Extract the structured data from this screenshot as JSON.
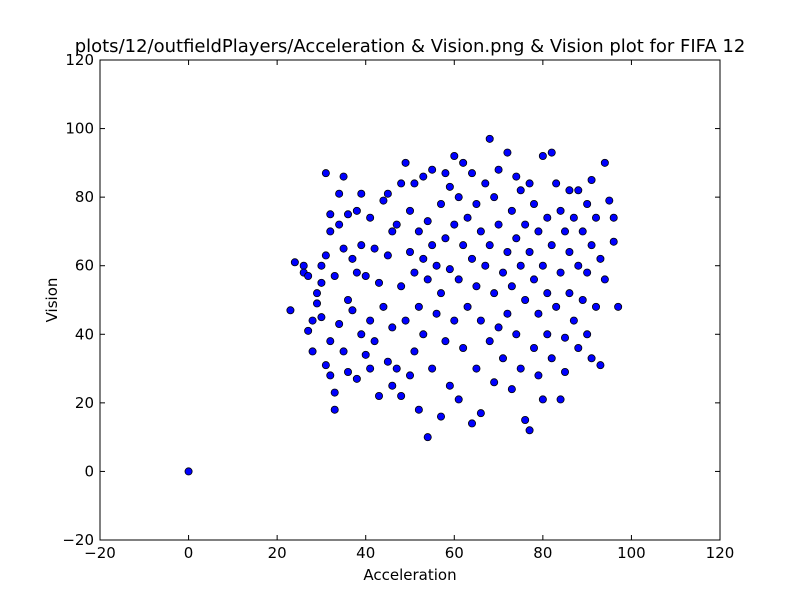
{
  "chart_data": {
    "type": "scatter",
    "title": "plots/12/outfieldPlayers/Acceleration & Vision.png & Vision plot for FIFA 12",
    "xlabel": "Acceleration",
    "ylabel": "Vision",
    "xlim": [
      -20,
      120
    ],
    "ylim": [
      -20,
      120
    ],
    "xticks": [
      "−20",
      "0",
      "20",
      "40",
      "60",
      "80",
      "100",
      "120"
    ],
    "yticks": [
      "−20",
      "0",
      "20",
      "40",
      "60",
      "80",
      "100",
      "120"
    ],
    "grid": false,
    "legend": "none",
    "marker_color": "#0000ff",
    "marker_edge_color": "#000000",
    "points": [
      [
        0,
        0
      ],
      [
        23,
        47
      ],
      [
        24,
        61
      ],
      [
        26,
        60
      ],
      [
        26,
        58
      ],
      [
        27,
        57
      ],
      [
        27,
        41
      ],
      [
        28,
        35
      ],
      [
        28,
        44
      ],
      [
        29,
        49
      ],
      [
        29,
        52
      ],
      [
        30,
        60
      ],
      [
        30,
        55
      ],
      [
        30,
        45
      ],
      [
        31,
        87
      ],
      [
        31,
        63
      ],
      [
        31,
        31
      ],
      [
        32,
        75
      ],
      [
        32,
        70
      ],
      [
        32,
        38
      ],
      [
        32,
        28
      ],
      [
        33,
        18
      ],
      [
        33,
        23
      ],
      [
        33,
        57
      ],
      [
        34,
        72
      ],
      [
        34,
        81
      ],
      [
        34,
        43
      ],
      [
        35,
        86
      ],
      [
        35,
        65
      ],
      [
        35,
        35
      ],
      [
        36,
        75
      ],
      [
        36,
        50
      ],
      [
        36,
        29
      ],
      [
        37,
        62
      ],
      [
        37,
        47
      ],
      [
        38,
        76
      ],
      [
        38,
        58
      ],
      [
        38,
        27
      ],
      [
        39,
        81
      ],
      [
        39,
        66
      ],
      [
        39,
        40
      ],
      [
        40,
        57
      ],
      [
        40,
        34
      ],
      [
        41,
        74
      ],
      [
        41,
        44
      ],
      [
        41,
        30
      ],
      [
        42,
        65
      ],
      [
        42,
        38
      ],
      [
        43,
        55
      ],
      [
        43,
        22
      ],
      [
        44,
        79
      ],
      [
        44,
        48
      ],
      [
        45,
        81
      ],
      [
        45,
        63
      ],
      [
        45,
        32
      ],
      [
        46,
        70
      ],
      [
        46,
        42
      ],
      [
        46,
        25
      ],
      [
        47,
        72
      ],
      [
        47,
        30
      ],
      [
        48,
        84
      ],
      [
        48,
        54
      ],
      [
        48,
        22
      ],
      [
        49,
        90
      ],
      [
        49,
        44
      ],
      [
        50,
        64
      ],
      [
        50,
        28
      ],
      [
        50,
        76
      ],
      [
        51,
        58
      ],
      [
        51,
        35
      ],
      [
        51,
        84
      ],
      [
        52,
        48
      ],
      [
        52,
        70
      ],
      [
        52,
        18
      ],
      [
        53,
        62
      ],
      [
        53,
        40
      ],
      [
        53,
        86
      ],
      [
        54,
        10
      ],
      [
        54,
        56
      ],
      [
        54,
        73
      ],
      [
        55,
        30
      ],
      [
        55,
        66
      ],
      [
        55,
        88
      ],
      [
        56,
        46
      ],
      [
        56,
        60
      ],
      [
        57,
        16
      ],
      [
        57,
        78
      ],
      [
        57,
        52
      ],
      [
        58,
        87
      ],
      [
        58,
        38
      ],
      [
        58,
        68
      ],
      [
        59,
        25
      ],
      [
        59,
        59
      ],
      [
        59,
        83
      ],
      [
        60,
        44
      ],
      [
        60,
        72
      ],
      [
        60,
        92
      ],
      [
        61,
        21
      ],
      [
        61,
        56
      ],
      [
        61,
        80
      ],
      [
        62,
        36
      ],
      [
        62,
        66
      ],
      [
        62,
        90
      ],
      [
        63,
        48
      ],
      [
        63,
        74
      ],
      [
        64,
        14
      ],
      [
        64,
        62
      ],
      [
        64,
        87
      ],
      [
        65,
        30
      ],
      [
        65,
        54
      ],
      [
        65,
        78
      ],
      [
        66,
        17
      ],
      [
        66,
        44
      ],
      [
        66,
        70
      ],
      [
        67,
        60
      ],
      [
        67,
        84
      ],
      [
        68,
        97
      ],
      [
        68,
        38
      ],
      [
        68,
        66
      ],
      [
        69,
        26
      ],
      [
        69,
        52
      ],
      [
        69,
        80
      ],
      [
        70,
        88
      ],
      [
        70,
        42
      ],
      [
        70,
        72
      ],
      [
        71,
        58
      ],
      [
        71,
        33
      ],
      [
        72,
        93
      ],
      [
        72,
        64
      ],
      [
        72,
        46
      ],
      [
        73,
        24
      ],
      [
        73,
        76
      ],
      [
        73,
        54
      ],
      [
        74,
        86
      ],
      [
        74,
        40
      ],
      [
        74,
        68
      ],
      [
        75,
        30
      ],
      [
        75,
        60
      ],
      [
        75,
        82
      ],
      [
        76,
        15
      ],
      [
        76,
        50
      ],
      [
        76,
        72
      ],
      [
        77,
        12
      ],
      [
        77,
        64
      ],
      [
        77,
        84
      ],
      [
        78,
        36
      ],
      [
        78,
        56
      ],
      [
        78,
        78
      ],
      [
        79,
        46
      ],
      [
        79,
        70
      ],
      [
        79,
        28
      ],
      [
        80,
        92
      ],
      [
        80,
        60
      ],
      [
        80,
        21
      ],
      [
        81,
        40
      ],
      [
        81,
        74
      ],
      [
        81,
        52
      ],
      [
        82,
        93
      ],
      [
        82,
        66
      ],
      [
        82,
        33
      ],
      [
        83,
        84
      ],
      [
        83,
        48
      ],
      [
        84,
        21
      ],
      [
        84,
        58
      ],
      [
        84,
        76
      ],
      [
        85,
        39
      ],
      [
        85,
        70
      ],
      [
        85,
        29
      ],
      [
        86,
        82
      ],
      [
        86,
        52
      ],
      [
        86,
        64
      ],
      [
        87,
        44
      ],
      [
        87,
        74
      ],
      [
        88,
        36
      ],
      [
        88,
        60
      ],
      [
        88,
        82
      ],
      [
        89,
        50
      ],
      [
        89,
        70
      ],
      [
        90,
        58
      ],
      [
        90,
        40
      ],
      [
        90,
        78
      ],
      [
        91,
        33
      ],
      [
        91,
        66
      ],
      [
        91,
        85
      ],
      [
        92,
        48
      ],
      [
        92,
        74
      ],
      [
        93,
        31
      ],
      [
        93,
        62
      ],
      [
        94,
        90
      ],
      [
        94,
        56
      ],
      [
        95,
        79
      ],
      [
        96,
        67
      ],
      [
        96,
        74
      ],
      [
        97,
        48
      ]
    ]
  }
}
